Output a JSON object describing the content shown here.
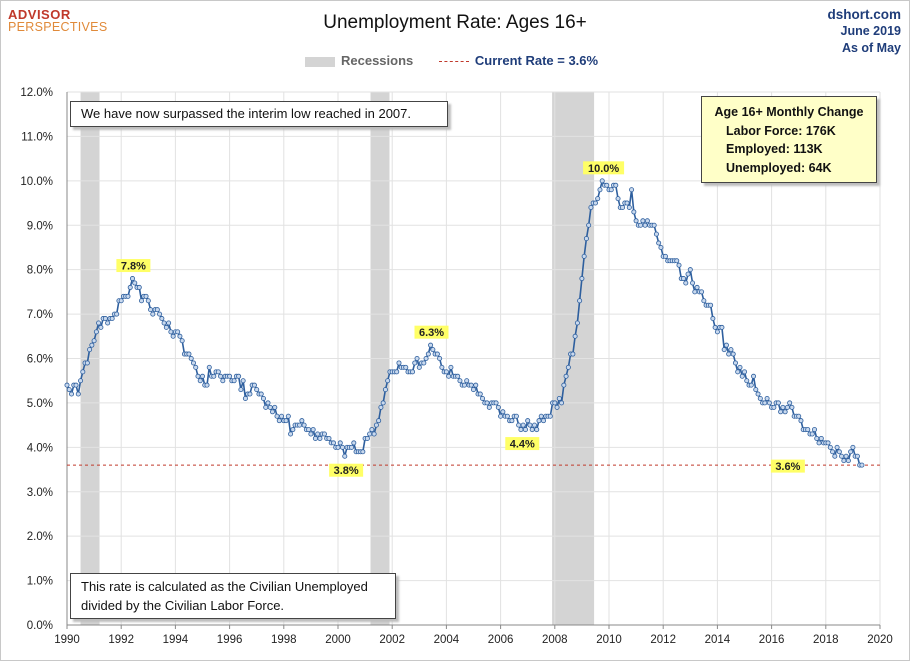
{
  "header": {
    "logo_line1": "ADVISOR",
    "logo_line2": "PERSPECTIVES",
    "title": "Unemployment Rate: Ages 16+",
    "source_site": "dshort.com",
    "source_date": "June 2019",
    "source_as_of": "As of May"
  },
  "legend": {
    "recessions_label": "Recessions",
    "current_label": "Current Rate = 3.6%"
  },
  "annotations": {
    "note_top": "We have now surpassed the interim low reached in 2007.",
    "note_bottom_line1": "This rate is calculated as the Civilian Unemployed",
    "note_bottom_line2": "divided by the Civilian Labor Force.",
    "monthly_title": "Age 16+ Monthly Change",
    "labor_force": "Labor Force:  176K",
    "employed": "Employed:  113K",
    "unemployed": "Unemployed:  64K"
  },
  "colors": {
    "line": "#2e5f9e",
    "marker_fill": "#c9d9ee",
    "recession": "#d4d4d4",
    "current_line": "#c0392b",
    "label_bg": "#ffff66",
    "text_navy": "#1f3d7a"
  },
  "chart_data": {
    "type": "line",
    "title": "Unemployment Rate: Ages 16+",
    "xlabel": "",
    "ylabel": "",
    "xlim": [
      1990,
      2020
    ],
    "ylim": [
      0,
      12
    ],
    "x_ticks": [
      "1990",
      "1992",
      "1994",
      "1996",
      "1998",
      "2000",
      "2002",
      "2004",
      "2006",
      "2008",
      "2010",
      "2012",
      "2014",
      "2016",
      "2018",
      "2020"
    ],
    "y_ticks": [
      "0.0%",
      "1.0%",
      "2.0%",
      "3.0%",
      "4.0%",
      "5.0%",
      "6.0%",
      "7.0%",
      "8.0%",
      "9.0%",
      "10.0%",
      "11.0%",
      "12.0%"
    ],
    "grid": true,
    "legend_position": "top-center",
    "current_rate": 3.6,
    "current_rate_label": "3.6%",
    "recessions": [
      {
        "start": 1990.5,
        "end": 1991.2
      },
      {
        "start": 2001.2,
        "end": 2001.9
      },
      {
        "start": 2007.9,
        "end": 2009.45
      }
    ],
    "callouts": [
      {
        "x": 1992.45,
        "y": 7.8,
        "label": "7.8%"
      },
      {
        "x": 2000.3,
        "y": 3.8,
        "label": "3.8%"
      },
      {
        "x": 2003.45,
        "y": 6.3,
        "label": "6.3%"
      },
      {
        "x": 2006.8,
        "y": 4.4,
        "label": "4.4%"
      },
      {
        "x": 2009.8,
        "y": 10.0,
        "label": "10.0%"
      }
    ],
    "series_monthly_from": "1990-01",
    "series": [
      {
        "name": "Unemployment Rate",
        "values": [
          5.4,
          5.3,
          5.2,
          5.4,
          5.4,
          5.2,
          5.5,
          5.7,
          5.9,
          5.9,
          6.2,
          6.3,
          6.4,
          6.6,
          6.8,
          6.7,
          6.9,
          6.9,
          6.8,
          6.9,
          6.9,
          7.0,
          7.0,
          7.3,
          7.3,
          7.4,
          7.4,
          7.4,
          7.6,
          7.8,
          7.7,
          7.6,
          7.6,
          7.3,
          7.4,
          7.4,
          7.3,
          7.1,
          7.0,
          7.1,
          7.1,
          7.0,
          6.9,
          6.8,
          6.7,
          6.8,
          6.6,
          6.5,
          6.6,
          6.6,
          6.5,
          6.4,
          6.1,
          6.1,
          6.1,
          6.0,
          5.9,
          5.8,
          5.6,
          5.5,
          5.6,
          5.4,
          5.4,
          5.8,
          5.6,
          5.6,
          5.7,
          5.7,
          5.6,
          5.5,
          5.6,
          5.6,
          5.6,
          5.5,
          5.5,
          5.6,
          5.6,
          5.3,
          5.5,
          5.1,
          5.2,
          5.2,
          5.4,
          5.4,
          5.3,
          5.2,
          5.2,
          5.1,
          4.9,
          5.0,
          4.9,
          4.8,
          4.9,
          4.7,
          4.6,
          4.7,
          4.6,
          4.6,
          4.7,
          4.3,
          4.4,
          4.5,
          4.5,
          4.5,
          4.6,
          4.5,
          4.4,
          4.4,
          4.3,
          4.4,
          4.2,
          4.3,
          4.2,
          4.3,
          4.3,
          4.2,
          4.2,
          4.1,
          4.1,
          4.0,
          4.0,
          4.1,
          4.0,
          3.8,
          4.0,
          4.0,
          4.0,
          4.1,
          3.9,
          3.9,
          3.9,
          3.9,
          4.2,
          4.2,
          4.3,
          4.4,
          4.3,
          4.5,
          4.6,
          4.9,
          5.0,
          5.3,
          5.5,
          5.7,
          5.7,
          5.7,
          5.7,
          5.9,
          5.8,
          5.8,
          5.8,
          5.7,
          5.7,
          5.7,
          5.9,
          6.0,
          5.8,
          5.9,
          5.9,
          6.0,
          6.1,
          6.3,
          6.2,
          6.1,
          6.1,
          6.0,
          5.8,
          5.7,
          5.7,
          5.6,
          5.8,
          5.6,
          5.6,
          5.6,
          5.5,
          5.4,
          5.4,
          5.5,
          5.4,
          5.4,
          5.3,
          5.4,
          5.2,
          5.2,
          5.1,
          5.0,
          5.0,
          4.9,
          5.0,
          5.0,
          5.0,
          4.9,
          4.7,
          4.8,
          4.7,
          4.7,
          4.6,
          4.6,
          4.7,
          4.7,
          4.5,
          4.4,
          4.5,
          4.4,
          4.6,
          4.5,
          4.4,
          4.5,
          4.4,
          4.6,
          4.7,
          4.6,
          4.7,
          4.7,
          4.7,
          5.0,
          5.0,
          4.9,
          5.1,
          5.0,
          5.4,
          5.6,
          5.8,
          6.1,
          6.1,
          6.5,
          6.8,
          7.3,
          7.8,
          8.3,
          8.7,
          9.0,
          9.4,
          9.5,
          9.5,
          9.6,
          9.8,
          10.0,
          9.9,
          9.9,
          9.8,
          9.8,
          9.9,
          9.9,
          9.6,
          9.4,
          9.4,
          9.5,
          9.5,
          9.4,
          9.8,
          9.3,
          9.1,
          9.0,
          9.0,
          9.1,
          9.0,
          9.1,
          9.0,
          9.0,
          9.0,
          8.8,
          8.6,
          8.5,
          8.3,
          8.3,
          8.2,
          8.2,
          8.2,
          8.2,
          8.2,
          8.1,
          7.8,
          7.8,
          7.7,
          7.9,
          8.0,
          7.7,
          7.5,
          7.6,
          7.5,
          7.5,
          7.3,
          7.2,
          7.2,
          7.2,
          6.9,
          6.7,
          6.6,
          6.7,
          6.7,
          6.2,
          6.3,
          6.1,
          6.2,
          6.1,
          5.9,
          5.7,
          5.8,
          5.6,
          5.7,
          5.5,
          5.4,
          5.4,
          5.6,
          5.3,
          5.2,
          5.1,
          5.0,
          5.0,
          5.1,
          5.0,
          4.9,
          4.9,
          5.0,
          5.0,
          4.8,
          4.9,
          4.8,
          4.9,
          5.0,
          4.9,
          4.7,
          4.7,
          4.7,
          4.6,
          4.4,
          4.4,
          4.4,
          4.3,
          4.3,
          4.4,
          4.2,
          4.1,
          4.2,
          4.1,
          4.1,
          4.1,
          4.0,
          3.9,
          3.8,
          4.0,
          3.9,
          3.8,
          3.7,
          3.8,
          3.7,
          3.9,
          4.0,
          3.8,
          3.8,
          3.6,
          3.6
        ]
      }
    ]
  }
}
